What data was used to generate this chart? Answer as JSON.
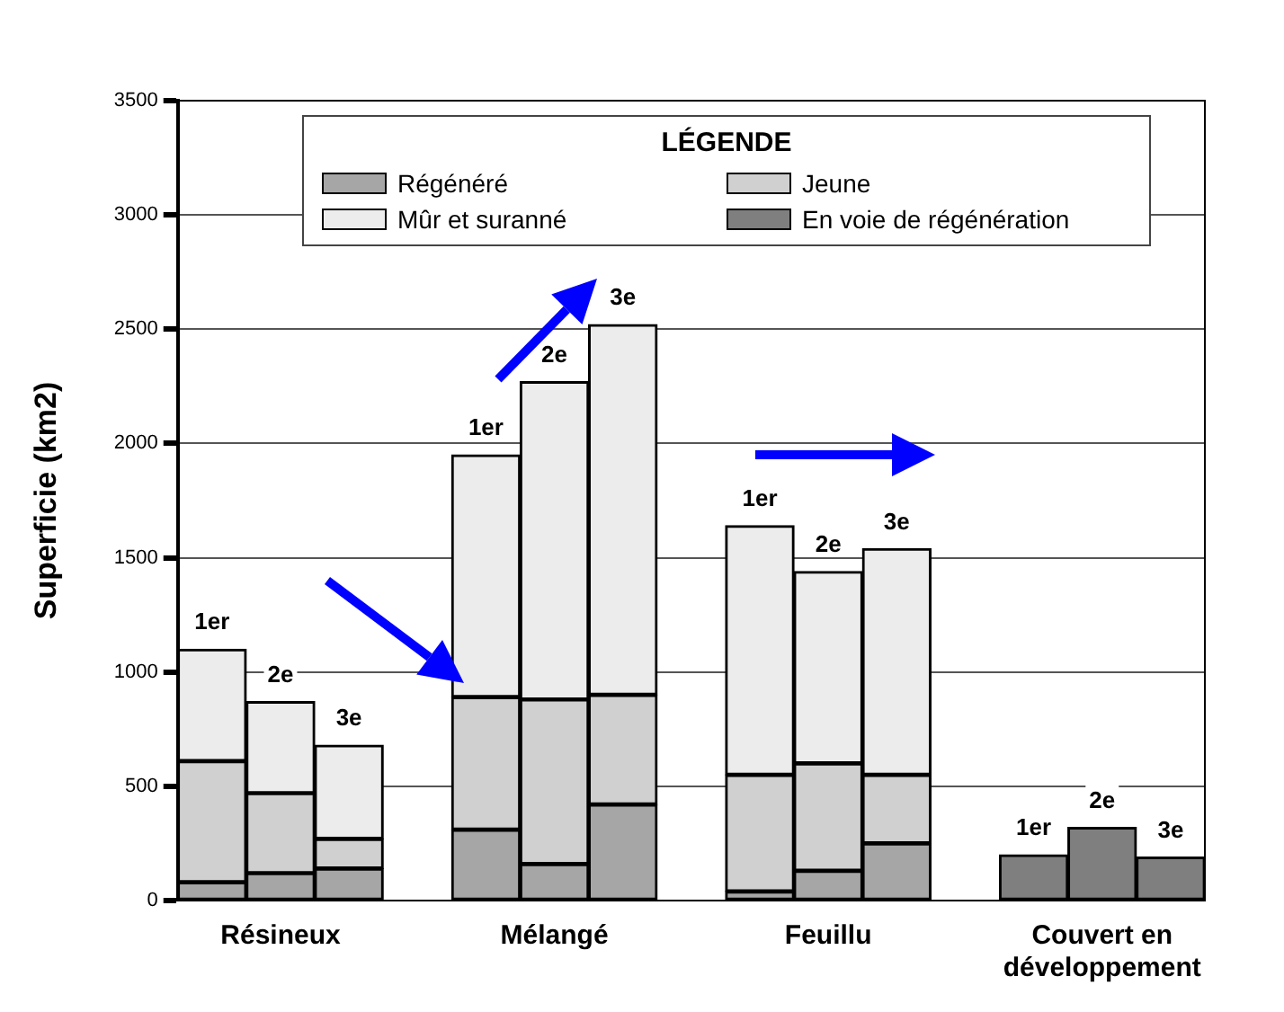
{
  "chart_data": {
    "type": "bar",
    "stacked": true,
    "ylabel": "Superficie (km2)",
    "legend_title": "LÉGENDE",
    "legend": "top",
    "grid": "y",
    "categories": [
      null,
      "Résineux",
      null,
      null,
      null,
      "Mélangé",
      null,
      null,
      null,
      "Feuillu",
      null,
      null,
      null,
      "Couvert en développement",
      null
    ],
    "ylim": [
      0,
      3500
    ],
    "yticks": [
      0,
      500,
      1000,
      1500,
      2000,
      2500,
      3000,
      3500
    ],
    "series": [
      {
        "name": "Régénéré",
        "color": "#a6a6a6",
        "values": [
          80,
          120,
          140,
          null,
          310,
          160,
          420,
          null,
          40,
          130,
          250,
          null,
          null,
          null,
          null
        ]
      },
      {
        "name": "Jeune",
        "color": "#d0d0d0",
        "values": [
          530,
          350,
          130,
          null,
          580,
          720,
          480,
          null,
          510,
          470,
          300,
          null,
          null,
          null,
          null
        ]
      },
      {
        "name": "Mûr et suranné",
        "color": "#ececec",
        "values": [
          490,
          400,
          410,
          null,
          1060,
          1390,
          1620,
          null,
          1090,
          840,
          990,
          null,
          null,
          null,
          null
        ]
      },
      {
        "name": "En voie de régénération",
        "color": "#7f7f7f",
        "values": [
          null,
          null,
          null,
          null,
          null,
          null,
          null,
          null,
          null,
          null,
          null,
          null,
          200,
          320,
          190
        ]
      }
    ],
    "annotations": [
      "1er",
      "2e",
      "3e",
      "1er",
      "2e",
      "3e",
      "1er",
      "2e",
      "3e",
      "1er",
      "2e",
      "3e"
    ]
  }
}
